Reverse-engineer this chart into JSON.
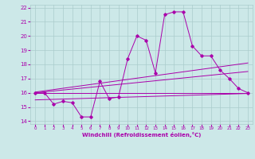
{
  "title": "",
  "xlabel": "Windchill (Refroidissement éolien,°C)",
  "background_color": "#cce8e8",
  "grid_color": "#aacccc",
  "line_color": "#aa00aa",
  "xlim": [
    -0.5,
    23.5
  ],
  "ylim": [
    13.8,
    22.2
  ],
  "yticks": [
    14,
    15,
    16,
    17,
    18,
    19,
    20,
    21,
    22
  ],
  "xticks": [
    0,
    1,
    2,
    3,
    4,
    5,
    6,
    7,
    8,
    9,
    10,
    11,
    12,
    13,
    14,
    15,
    16,
    17,
    18,
    19,
    20,
    21,
    22,
    23
  ],
  "series1_x": [
    0,
    1,
    2,
    3,
    4,
    5,
    6,
    7,
    8,
    9,
    10,
    11,
    12,
    13,
    14,
    15,
    16,
    17,
    18,
    19,
    20,
    21,
    22,
    23
  ],
  "series1_y": [
    16.0,
    16.0,
    15.2,
    15.4,
    15.3,
    14.3,
    14.3,
    16.8,
    15.6,
    15.7,
    18.4,
    20.0,
    19.7,
    17.4,
    21.5,
    21.7,
    21.7,
    19.3,
    18.6,
    18.6,
    17.6,
    17.0,
    16.3,
    16.0
  ],
  "series2_x": [
    0,
    23
  ],
  "series2_y": [
    16.05,
    18.1
  ],
  "series3_x": [
    0,
    23
  ],
  "series3_y": [
    16.0,
    17.5
  ],
  "series4_x": [
    0,
    23
  ],
  "series4_y": [
    16.0,
    16.0
  ],
  "series5_x": [
    0,
    23
  ],
  "series5_y": [
    15.5,
    15.95
  ]
}
